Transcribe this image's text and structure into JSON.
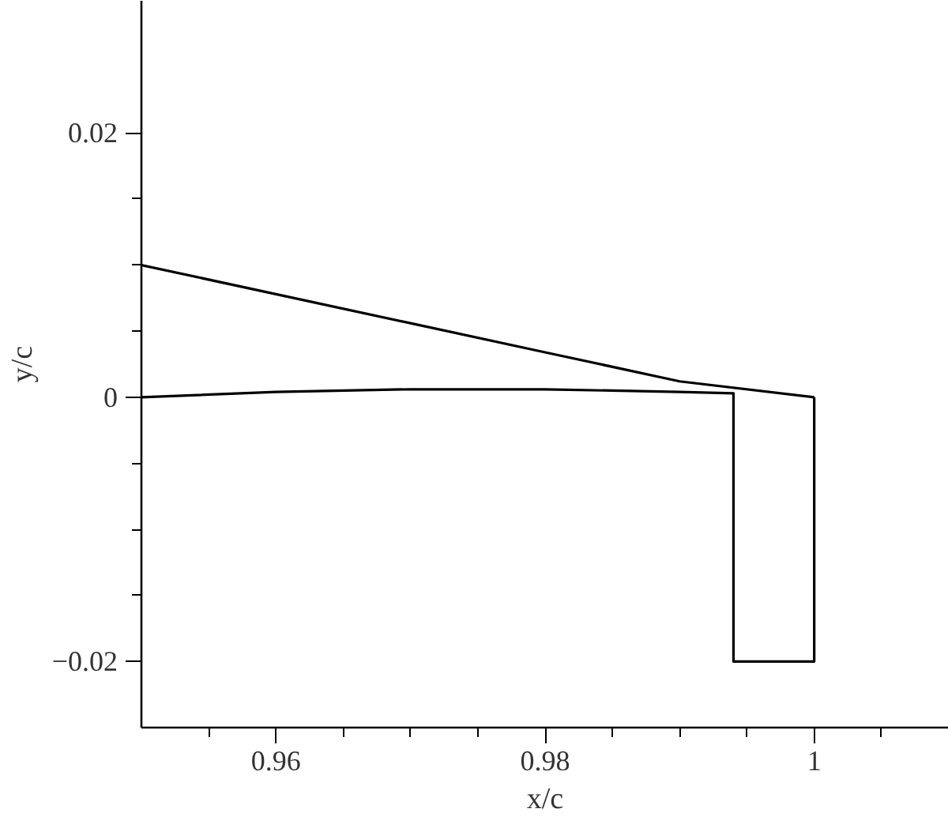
{
  "chart_data": {
    "type": "line",
    "xlabel": "x/c",
    "ylabel": "y/c",
    "xlim": [
      0.95,
      1.01
    ],
    "ylim": [
      -0.025,
      0.03
    ],
    "xticks": [
      {
        "value": 0.955,
        "label": null
      },
      {
        "value": 0.96,
        "label": "0.96"
      },
      {
        "value": 0.965,
        "label": null
      },
      {
        "value": 0.97,
        "label": null
      },
      {
        "value": 0.975,
        "label": null
      },
      {
        "value": 0.98,
        "label": "0.98"
      },
      {
        "value": 0.985,
        "label": null
      },
      {
        "value": 0.99,
        "label": null
      },
      {
        "value": 0.995,
        "label": null
      },
      {
        "value": 1,
        "label": "1"
      },
      {
        "value": 1.005,
        "label": null
      }
    ],
    "yticks": [
      {
        "value": -0.02,
        "label": "−0.02"
      },
      {
        "value": -0.015,
        "label": null
      },
      {
        "value": -0.01,
        "label": null
      },
      {
        "value": -0.005,
        "label": null
      },
      {
        "value": 0,
        "label": "0"
      },
      {
        "value": 0.005,
        "label": null
      },
      {
        "value": 0.01,
        "label": null
      },
      {
        "value": 0.015,
        "label": null
      },
      {
        "value": 0.02,
        "label": "0.02"
      }
    ],
    "marker": "none",
    "line_style": "solid",
    "series": [
      {
        "color": "#000000",
        "x": [
          0.95,
          0.96,
          0.97,
          0.98,
          0.99,
          1.0
        ],
        "values": [
          0.01,
          0.0078,
          0.0056,
          0.0034,
          0.0012,
          0
        ]
      },
      {
        "color": "#000000",
        "x": [
          0.95,
          0.96,
          0.97,
          0.98,
          0.99,
          0.994,
          0.994,
          1.0,
          1.0
        ],
        "values": [
          0,
          0.0004,
          0.0006,
          0.0006,
          0.0004,
          0.0003,
          -0.02,
          -0.02,
          0
        ]
      }
    ]
  }
}
